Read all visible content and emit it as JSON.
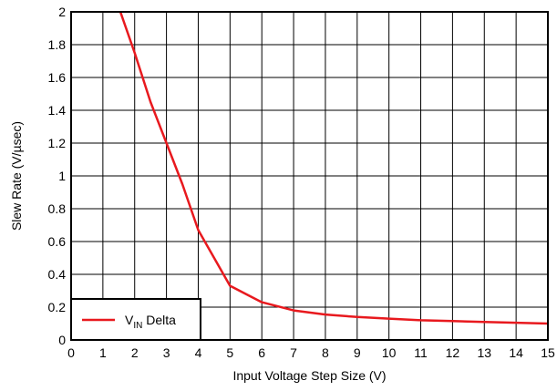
{
  "chart_data": {
    "type": "line",
    "title": "",
    "xlabel": "Input Voltage Step Size (V)",
    "ylabel": "Slew Rate (V/µsec)",
    "xlim": [
      0,
      15
    ],
    "ylim": [
      0,
      2
    ],
    "x_ticks": [
      0,
      1,
      2,
      3,
      4,
      5,
      6,
      7,
      8,
      9,
      10,
      11,
      12,
      13,
      14,
      15
    ],
    "y_ticks": [
      0,
      0.2,
      0.4,
      0.6,
      0.8,
      1,
      1.2,
      1.4,
      1.6,
      1.8,
      2
    ],
    "y_tick_labels": [
      "0",
      "0.2",
      "0.4",
      "0.6",
      "0.8",
      "1",
      "1.2",
      "1.4",
      "1.6",
      "1.8",
      "2"
    ],
    "grid": true,
    "legend_position": "bottom-left",
    "series": [
      {
        "name": "VIN Delta",
        "name_main": "V",
        "name_sub": "IN",
        "name_rest": " Delta",
        "color": "#e8191e",
        "x": [
          1.55,
          2,
          2.5,
          3,
          3.5,
          4,
          4.5,
          5,
          5.5,
          6,
          7,
          8,
          9,
          10,
          11,
          12,
          13,
          14,
          15
        ],
        "y": [
          2.0,
          1.75,
          1.45,
          1.2,
          0.95,
          0.67,
          0.5,
          0.33,
          0.28,
          0.23,
          0.18,
          0.155,
          0.14,
          0.13,
          0.12,
          0.115,
          0.11,
          0.105,
          0.1
        ]
      }
    ]
  }
}
